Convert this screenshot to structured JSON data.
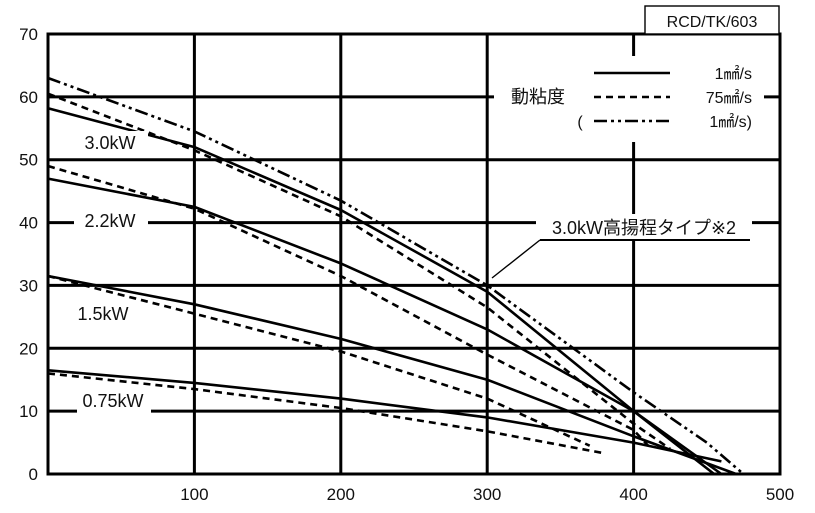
{
  "chart_data": {
    "type": "line",
    "code_label": "RCD/TK/603",
    "title": "",
    "xlabel": "",
    "ylabel": "",
    "xlim": [
      0,
      500
    ],
    "ylim": [
      0,
      70
    ],
    "x_ticks": [
      "100",
      "200",
      "300",
      "400",
      "500"
    ],
    "y_ticks": [
      "0",
      "10",
      "20",
      "30",
      "40",
      "50",
      "60",
      "70"
    ],
    "grid": true,
    "legend": {
      "placement": "top-right",
      "group_label": "動粘度",
      "entries": [
        {
          "style": "solid",
          "label": "1㎟/s"
        },
        {
          "style": "dashed",
          "label": "75㎟/s"
        },
        {
          "style": "dashdot",
          "label": "1㎟/s)",
          "prefix": "("
        }
      ]
    },
    "annotations": [
      {
        "text": "3.0kW高揚程タイプ※2",
        "points_to": "3.0kW高揚程タイプ※2"
      }
    ],
    "series": [
      {
        "name": "3.0kW",
        "style": "solid",
        "x": [
          0,
          100,
          200,
          300,
          400,
          460
        ],
        "y": [
          58.2,
          52,
          42,
          29,
          10,
          0
        ]
      },
      {
        "name": "3.0kW",
        "style": "dashed",
        "x": [
          0,
          100,
          200,
          300,
          400,
          425
        ],
        "y": [
          60.5,
          51.5,
          41,
          26.5,
          8,
          4
        ]
      },
      {
        "name": "2.2kW",
        "style": "solid",
        "x": [
          0,
          100,
          200,
          300,
          400,
          455
        ],
        "y": [
          47,
          42.5,
          33.5,
          23,
          10,
          0
        ]
      },
      {
        "name": "2.2kW",
        "style": "dashed",
        "x": [
          0,
          100,
          200,
          300,
          400,
          410
        ],
        "y": [
          49,
          42.2,
          31.5,
          19,
          7,
          4.5
        ]
      },
      {
        "name": "1.5kW",
        "style": "solid",
        "x": [
          0,
          100,
          200,
          300,
          400,
          470
        ],
        "y": [
          31.5,
          27,
          21.5,
          15,
          6,
          0
        ]
      },
      {
        "name": "1.5kW",
        "style": "dashed",
        "x": [
          0,
          100,
          200,
          300,
          370
        ],
        "y": [
          31.5,
          25.5,
          19.5,
          12,
          4.5
        ]
      },
      {
        "name": "0.75kW",
        "style": "solid",
        "x": [
          0,
          100,
          200,
          300,
          400,
          460
        ],
        "y": [
          16.5,
          14.5,
          12,
          9,
          5,
          2
        ]
      },
      {
        "name": "0.75kW",
        "style": "dashed",
        "x": [
          0,
          100,
          200,
          300,
          380
        ],
        "y": [
          16,
          13.5,
          10.5,
          6.8,
          3.3
        ]
      },
      {
        "name": "3.0kW高揚程タイプ※2",
        "style": "dashdot",
        "x": [
          0,
          100,
          200,
          300,
          400,
          450,
          475
        ],
        "y": [
          63,
          54.5,
          43.5,
          30,
          13,
          5,
          0
        ]
      }
    ],
    "series_labels": [
      "3.0kW",
      "2.2kW",
      "1.5kW",
      "0.75kW"
    ]
  }
}
